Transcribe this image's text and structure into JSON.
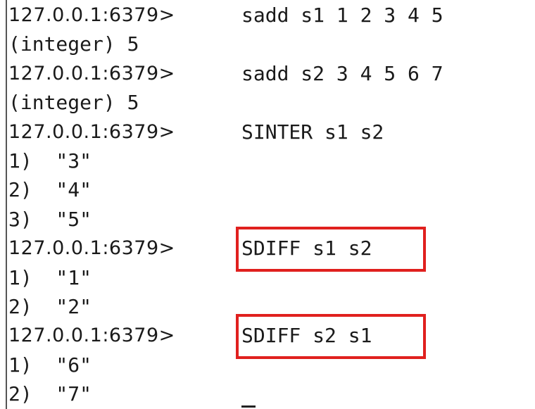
{
  "terminal": {
    "lines": [
      {
        "prompt": "127.0.0.1:6379>",
        "command": "sadd s1 1 2 3 4 5"
      },
      {
        "text": "(integer) 5"
      },
      {
        "prompt": "127.0.0.1:6379>",
        "command": "sadd s2 3 4 5 6 7"
      },
      {
        "text": "(integer) 5"
      },
      {
        "prompt": "127.0.0.1:6379>",
        "command": "SINTER s1 s2"
      },
      {
        "text": "1)  \"3\""
      },
      {
        "text": "2)  \"4\""
      },
      {
        "text": "3)  \"5\""
      },
      {
        "prompt": "127.0.0.1:6379>",
        "command": "SDIFF s1 s2",
        "highlighted": true
      },
      {
        "text": "1)  \"1\""
      },
      {
        "text": "2)  \"2\""
      },
      {
        "prompt": "127.0.0.1:6379>",
        "command": "SDIFF s2 s1",
        "highlighted": true
      },
      {
        "text": "1)  \"6\""
      },
      {
        "text": "2)  \"7\""
      }
    ]
  }
}
